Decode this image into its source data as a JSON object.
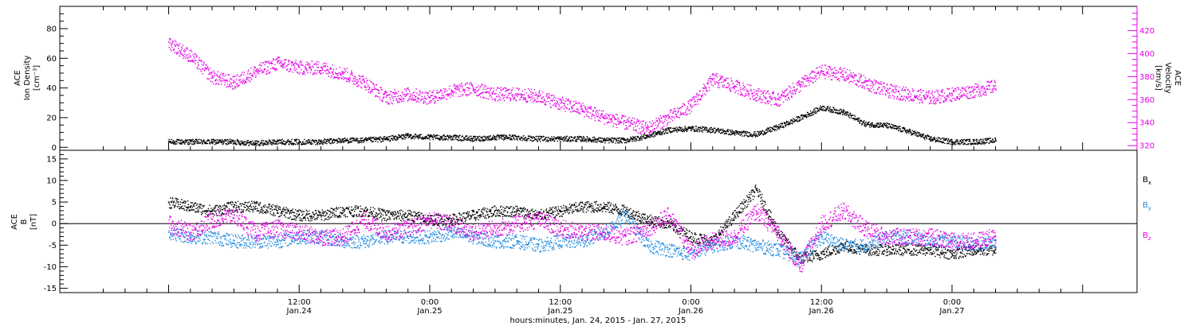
{
  "colors": {
    "density": "#000000",
    "velocity": "#e600e6",
    "bx": "#000000",
    "by": "#1f8be0",
    "bz": "#e600e6",
    "frame": "#000000"
  },
  "chart_data": [
    {
      "type": "scatter",
      "ylabel_left": [
        "ACE",
        "Ion Density",
        "[cm⁻³]"
      ],
      "ylabel_right": [
        "ACE",
        "Velocity",
        "[km/s]"
      ],
      "y_left": {
        "lim": [
          -2,
          95
        ],
        "ticks": [
          0,
          20,
          40,
          60,
          80
        ]
      },
      "y_right": {
        "lim": [
          316,
          441
        ],
        "ticks": [
          320,
          340,
          360,
          380,
          400,
          420
        ]
      },
      "series": [
        {
          "key": "density",
          "axis": "left",
          "x": [
            0,
            2,
            4,
            6,
            8,
            10,
            12,
            14,
            16,
            18,
            20,
            22,
            24,
            26,
            28,
            30,
            32,
            34,
            36,
            38,
            40,
            42,
            44,
            46,
            48,
            50,
            52,
            54,
            56,
            58,
            60,
            62,
            64,
            66,
            68,
            70,
            72,
            74,
            76
          ],
          "y": [
            4,
            4,
            4,
            4,
            3,
            4,
            4,
            4,
            5,
            5,
            6,
            8,
            7,
            7,
            6,
            7,
            7,
            6,
            6,
            6,
            5,
            5,
            8,
            12,
            13,
            12,
            10,
            9,
            14,
            20,
            27,
            24,
            16,
            15,
            11,
            6,
            4,
            4,
            5
          ],
          "jitter": 1.8
        },
        {
          "key": "velocity",
          "axis": "right",
          "x": [
            0,
            2,
            4,
            6,
            8,
            10,
            12,
            14,
            16,
            18,
            20,
            22,
            24,
            26,
            28,
            30,
            32,
            34,
            36,
            38,
            40,
            42,
            44,
            46,
            48,
            50,
            52,
            54,
            56,
            58,
            60,
            62,
            64,
            66,
            68,
            70,
            72,
            74,
            76
          ],
          "y": [
            410,
            398,
            380,
            375,
            385,
            392,
            388,
            388,
            383,
            375,
            362,
            365,
            362,
            368,
            370,
            365,
            365,
            363,
            357,
            352,
            345,
            340,
            335,
            345,
            355,
            378,
            372,
            365,
            360,
            373,
            385,
            382,
            375,
            368,
            365,
            362,
            365,
            368,
            372
          ],
          "jitter": 6
        }
      ]
    },
    {
      "type": "scatter",
      "ylabel_left": [
        "ACE",
        "B",
        "[nT]"
      ],
      "y_left": {
        "lim": [
          -16,
          17
        ],
        "ticks": [
          -15,
          -10,
          -5,
          0,
          5,
          10,
          15
        ]
      },
      "x_ticks": [
        {
          "x": 12,
          "time": "12:00",
          "date": "Jan.24"
        },
        {
          "x": 24,
          "time": "0:00",
          "date": "Jan.25"
        },
        {
          "x": 36,
          "time": "12:00",
          "date": "Jan.25"
        },
        {
          "x": 48,
          "time": "0:00",
          "date": "Jan.26"
        },
        {
          "x": 60,
          "time": "12:00",
          "date": "Jan.26"
        },
        {
          "x": 72,
          "time": "0:00",
          "date": "Jan.27"
        }
      ],
      "xlabel": "hours:minutes, Jan. 24, 2015 - Jan. 27, 2015",
      "legend": [
        {
          "key": "bx",
          "base": "B",
          "sub": "x"
        },
        {
          "key": "by",
          "base": "B",
          "sub": "y"
        },
        {
          "key": "bz",
          "base": "B",
          "sub": "z"
        }
      ],
      "series": [
        {
          "key": "bx",
          "axis": "left",
          "x": [
            0,
            2,
            4,
            6,
            8,
            10,
            12,
            14,
            16,
            18,
            20,
            22,
            24,
            26,
            28,
            30,
            32,
            34,
            36,
            38,
            40,
            42,
            44,
            46,
            48,
            50,
            52,
            54,
            56,
            58,
            60,
            62,
            64,
            66,
            68,
            70,
            72,
            74,
            76
          ],
          "y": [
            5,
            4,
            3,
            4,
            4,
            3,
            2,
            2,
            3,
            3,
            2,
            2,
            1,
            1,
            2,
            3,
            3,
            2,
            3,
            4,
            4,
            3,
            1,
            0,
            -3,
            -4,
            2,
            8,
            -2,
            -8,
            -7,
            -5,
            -6,
            -6,
            -6,
            -6,
            -7,
            -6,
            -6
          ],
          "jitter": 1.3
        },
        {
          "key": "by",
          "axis": "left",
          "x": [
            0,
            2,
            4,
            6,
            8,
            10,
            12,
            14,
            16,
            18,
            20,
            22,
            24,
            26,
            28,
            30,
            32,
            34,
            36,
            38,
            40,
            42,
            44,
            46,
            48,
            50,
            52,
            54,
            56,
            58,
            60,
            62,
            64,
            66,
            68,
            70,
            72,
            74,
            76
          ],
          "y": [
            -2,
            -3,
            -3,
            -4,
            -4,
            -4,
            -3,
            -3,
            -4,
            -4,
            -3,
            -3,
            -3,
            -2,
            -3,
            -4,
            -4,
            -5,
            -4,
            -4,
            -2,
            2,
            -5,
            -6,
            -7,
            -5,
            -4,
            -5,
            -6,
            -8,
            -3,
            -5,
            -5,
            -3,
            -3,
            -4,
            -4,
            -5,
            -4
          ],
          "jitter": 1.6
        },
        {
          "key": "bz",
          "axis": "left",
          "x": [
            0,
            2,
            4,
            6,
            8,
            10,
            12,
            14,
            16,
            18,
            20,
            22,
            24,
            26,
            28,
            30,
            32,
            34,
            36,
            38,
            40,
            42,
            44,
            46,
            48,
            50,
            52,
            54,
            56,
            58,
            60,
            62,
            64,
            66,
            68,
            70,
            72,
            74,
            76
          ],
          "y": [
            0,
            -2,
            1,
            2,
            -2,
            -1,
            -2,
            -3,
            -3,
            1,
            -2,
            -1,
            1,
            0,
            -2,
            -1,
            0,
            1,
            -1,
            -2,
            -2,
            -3,
            -1,
            2,
            -6,
            -4,
            -3,
            3,
            -2,
            -10,
            0,
            3,
            -1,
            -3,
            -3,
            -3,
            -4,
            -4,
            -3
          ],
          "jitter": 2.0
        }
      ]
    }
  ]
}
